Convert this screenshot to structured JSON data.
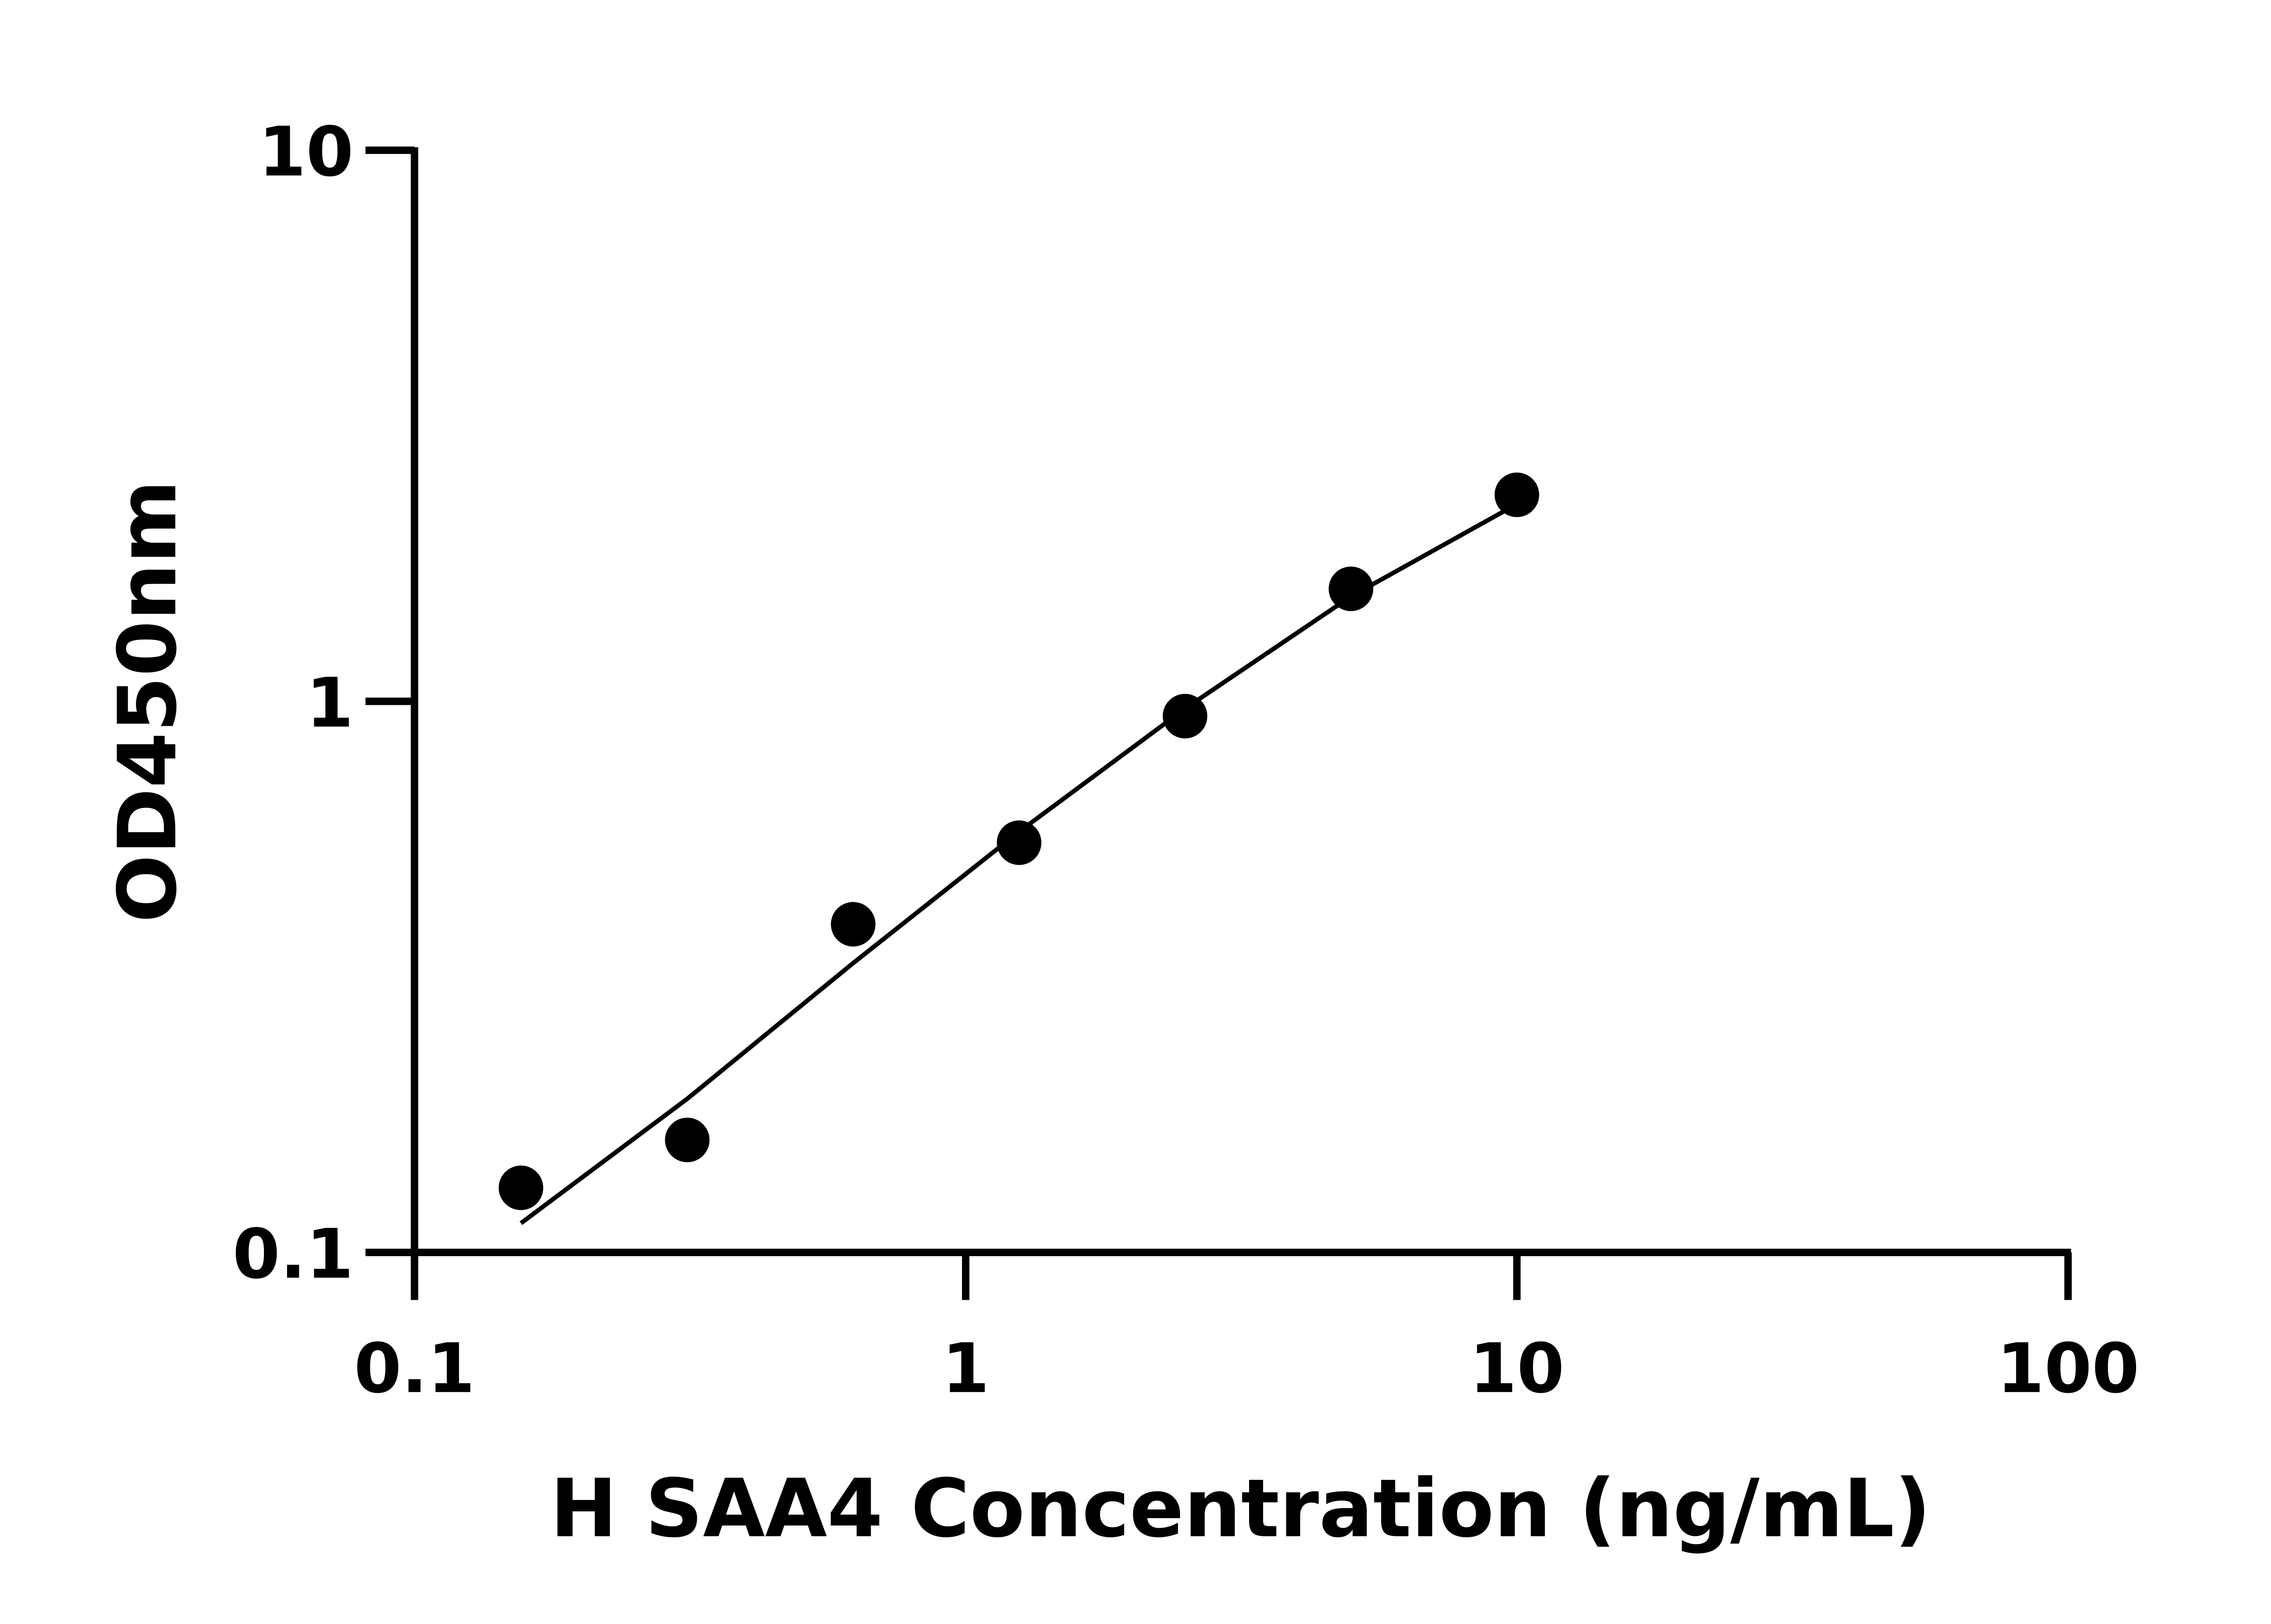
{
  "chart_data": {
    "type": "scatter",
    "title": "",
    "xlabel": "H SAA4 Concentration (ng/mL)",
    "ylabel": "OD450nm",
    "x_scale": "log",
    "y_scale": "log",
    "xlim": [
      0.1,
      100
    ],
    "ylim": [
      0.1,
      10
    ],
    "x_ticks": [
      "0.1",
      "1",
      "10",
      "100"
    ],
    "y_ticks": [
      "0.1",
      "1",
      "10"
    ],
    "grid": false,
    "legend": "none",
    "series": [
      {
        "x": [
          0.156,
          0.3125,
          0.625,
          1.25,
          2.5,
          5,
          10
        ],
        "y": [
          0.131,
          0.16,
          0.394,
          0.554,
          0.94,
          1.6,
          2.37
        ],
        "marker": "circle",
        "color": "#000000"
      }
    ],
    "fit_curve": {
      "x": [
        0.156,
        0.3125,
        0.625,
        1.25,
        2.5,
        5,
        10
      ],
      "y": [
        0.113,
        0.19,
        0.335,
        0.58,
        0.97,
        1.55,
        2.28
      ],
      "color": "#000000"
    }
  }
}
